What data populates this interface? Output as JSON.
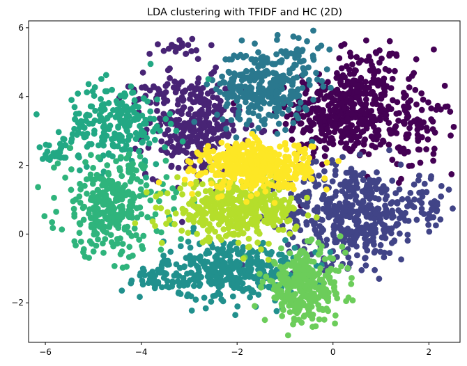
{
  "chart_data": {
    "type": "scatter",
    "title": "LDA clustering with TFIDF and HC (2D)",
    "xlabel": "",
    "ylabel": "",
    "xlim": [
      -6.35,
      2.65
    ],
    "ylim": [
      -3.15,
      6.2
    ],
    "xticks": [
      -6,
      -4,
      -2,
      0,
      2
    ],
    "xtick_labels": [
      "−6",
      "−4",
      "−2",
      "0",
      "2"
    ],
    "yticks": [
      -2,
      0,
      2,
      4,
      6
    ],
    "ytick_labels": [
      "−2",
      "0",
      "2",
      "4",
      "6"
    ],
    "grid": false,
    "legend": "none",
    "clusters": [
      {
        "color": "#440154",
        "center": [
          0.2,
          3.5
        ],
        "spread": [
          0.75,
          0.85
        ],
        "count": 420,
        "extra": [
          [
            1.75,
            3.0,
            0.4,
            0.6,
            90
          ],
          [
            0.9,
            4.9,
            0.4,
            0.35,
            50
          ]
        ]
      },
      {
        "color": "#482475",
        "center": [
          -2.9,
          3.1
        ],
        "spread": [
          0.65,
          0.95
        ],
        "count": 300,
        "extra": [
          [
            -3.2,
            5.4,
            0.3,
            0.15,
            20
          ],
          [
            -3.6,
            4.3,
            0.35,
            0.35,
            30
          ]
        ]
      },
      {
        "color": "#414487",
        "center": [
          0.4,
          0.6
        ],
        "spread": [
          0.95,
          0.95
        ],
        "count": 440,
        "extra": [
          [
            2.0,
            0.8,
            0.25,
            0.35,
            40
          ]
        ]
      },
      {
        "color": "#2a788e",
        "center": [
          -1.45,
          4.3
        ],
        "spread": [
          0.65,
          0.75
        ],
        "count": 300,
        "extra": [
          [
            -0.6,
            5.2,
            0.3,
            0.3,
            25
          ]
        ]
      },
      {
        "color": "#21908d",
        "center": [
          -2.1,
          -1.05
        ],
        "spread": [
          0.95,
          0.6
        ],
        "count": 360,
        "extra": [
          [
            -3.8,
            -1.3,
            0.35,
            0.2,
            35
          ]
        ]
      },
      {
        "color": "#22a884",
        "center": [
          -4.5,
          3.2
        ],
        "spread": [
          0.7,
          0.8
        ],
        "count": 220,
        "extra": [
          [
            -5.8,
            2.35,
            0.25,
            0.15,
            25
          ]
        ]
      },
      {
        "color": "#2fb47c",
        "center": [
          -4.6,
          0.8
        ],
        "spread": [
          0.75,
          0.95
        ],
        "count": 300,
        "extra": []
      },
      {
        "color": "#6ccd5a",
        "center": [
          -0.6,
          -1.55
        ],
        "spread": [
          0.55,
          0.7
        ],
        "count": 300,
        "extra": []
      },
      {
        "color": "#b5de2b",
        "center": [
          -2.0,
          0.7
        ],
        "spread": [
          0.85,
          0.55
        ],
        "count": 400,
        "extra": []
      },
      {
        "color": "#fde725",
        "center": [
          -1.6,
          2.0
        ],
        "spread": [
          0.75,
          0.45
        ],
        "count": 450,
        "extra": []
      }
    ]
  }
}
